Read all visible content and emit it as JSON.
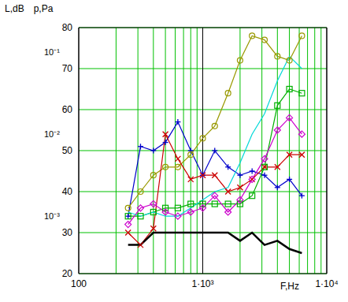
{
  "chart_data": {
    "type": "line",
    "xlabel": "F,Hz",
    "ylabel": "L,dB",
    "log": "x",
    "grid": true,
    "x": [
      250,
      315,
      400,
      500,
      630,
      800,
      1000,
      1250,
      1600,
      2000,
      2500,
      3150,
      4000,
      5000,
      6300
    ],
    "xlim": [
      100,
      10000
    ],
    "xticks": [
      100,
      {
        "value": 1000,
        "label": "1·10³"
      },
      {
        "value": 10000,
        "label": "1·10⁴"
      }
    ],
    "ylim": [
      20,
      80
    ],
    "yticks": [
      20,
      30,
      40,
      50,
      60,
      70,
      80
    ],
    "annotations": [
      {
        "text": "p,Pa"
      },
      {
        "text": "10⁻¹",
        "y": 74
      },
      {
        "text": "10⁻²",
        "y": 54
      },
      {
        "text": "10⁻³",
        "y": 34
      }
    ],
    "series": [
      {
        "color": "#0000cc",
        "marker": "plus",
        "line_style": "solid",
        "values": [
          34,
          51,
          50,
          52,
          57,
          50,
          44,
          50,
          46,
          44,
          45,
          44,
          41,
          43,
          39
        ]
      },
      {
        "color": "#999900",
        "marker": "circle",
        "line_style": "solid",
        "values": [
          36,
          40,
          44,
          46,
          46,
          49,
          53,
          56,
          64,
          72,
          78,
          77,
          73,
          72,
          78
        ]
      },
      {
        "color": "#cc0000",
        "marker": "x",
        "line_style": "solid",
        "values": [
          30,
          27,
          31,
          54,
          48,
          43,
          44,
          44,
          40,
          41,
          43,
          46,
          46,
          49,
          49
        ]
      },
      {
        "color": "#00b000",
        "marker": "square",
        "line_style": "solid",
        "values": [
          34,
          34,
          35,
          36,
          36,
          37,
          37,
          37,
          37,
          37,
          39,
          46,
          61,
          65,
          64
        ]
      },
      {
        "color": "#cc00cc",
        "marker": "diamond",
        "line_style": "solid",
        "values": [
          32,
          36,
          37,
          35,
          34,
          35,
          36,
          39,
          35,
          38,
          43,
          48,
          55,
          58,
          54
        ]
      },
      {
        "color": "#00d8d8",
        "marker": "none",
        "line_style": "solid",
        "values": [
          35,
          34,
          35,
          34,
          34,
          36,
          38,
          40,
          41,
          47,
          54,
          59,
          67,
          73,
          70
        ]
      },
      {
        "color": "#000000",
        "marker": "none",
        "line_style": "solid",
        "values": [
          27,
          27,
          30,
          30,
          30,
          30,
          30,
          30,
          30,
          28,
          30,
          27,
          28,
          26,
          25
        ]
      }
    ]
  }
}
